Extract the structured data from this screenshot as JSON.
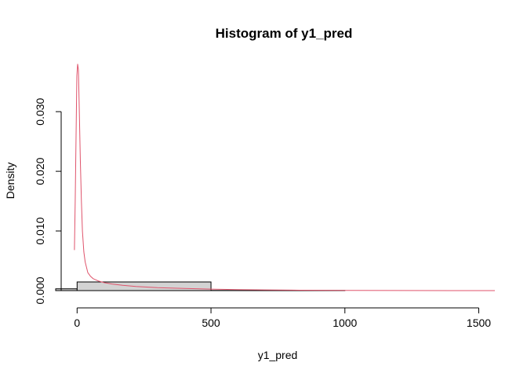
{
  "chart_data": {
    "type": "histogram",
    "title": "Histogram of y1_pred",
    "xlabel": "y1_pred",
    "ylabel": "Density",
    "xlim": [
      -80,
      1560
    ],
    "ylim": [
      0,
      0.037
    ],
    "x_ticks": [
      0,
      500,
      1000,
      1500
    ],
    "x_tick_labels": [
      "0",
      "500",
      "1000",
      "1500"
    ],
    "y_ticks": [
      0.0,
      0.01,
      0.02,
      0.03
    ],
    "y_tick_labels": [
      "0.000",
      "0.010",
      "0.020",
      "0.030"
    ],
    "grid": false,
    "legend": "none",
    "bins": [
      {
        "start": -500,
        "end": 0,
        "density": 0.0003
      },
      {
        "start": 0,
        "end": 500,
        "density": 0.00145
      },
      {
        "start": 500,
        "end": 1000,
        "density": 3e-05
      },
      {
        "start": 1000,
        "end": 1500,
        "density": 0.0
      },
      {
        "start": 1500,
        "end": 2000,
        "density": 0.0
      }
    ],
    "density_curve": {
      "color": "#DF536B",
      "points": [
        [
          -10,
          0.0068
        ],
        [
          -7,
          0.015
        ],
        [
          -4,
          0.026
        ],
        [
          -1,
          0.036
        ],
        [
          2,
          0.038
        ],
        [
          5,
          0.037
        ],
        [
          8,
          0.031
        ],
        [
          12,
          0.022
        ],
        [
          16,
          0.015
        ],
        [
          20,
          0.01
        ],
        [
          25,
          0.0065
        ],
        [
          30,
          0.0048
        ],
        [
          40,
          0.003
        ],
        [
          50,
          0.0024
        ],
        [
          60,
          0.002
        ],
        [
          80,
          0.0016
        ],
        [
          100,
          0.00135
        ],
        [
          130,
          0.0011
        ],
        [
          170,
          0.0009
        ],
        [
          220,
          0.0007
        ],
        [
          300,
          0.0005
        ],
        [
          400,
          0.00035
        ],
        [
          500,
          0.00025
        ],
        [
          600,
          0.00017
        ],
        [
          700,
          0.00012
        ],
        [
          800,
          8e-05
        ],
        [
          900,
          5e-05
        ],
        [
          1000,
          3e-05
        ],
        [
          1200,
          1e-05
        ],
        [
          1400,
          5e-06
        ],
        [
          1560,
          0.0
        ]
      ]
    }
  },
  "colors": {
    "bar_fill": "#D3D3D3",
    "bar_stroke": "#000000",
    "curve": "#DF536B",
    "axis": "#000000"
  }
}
